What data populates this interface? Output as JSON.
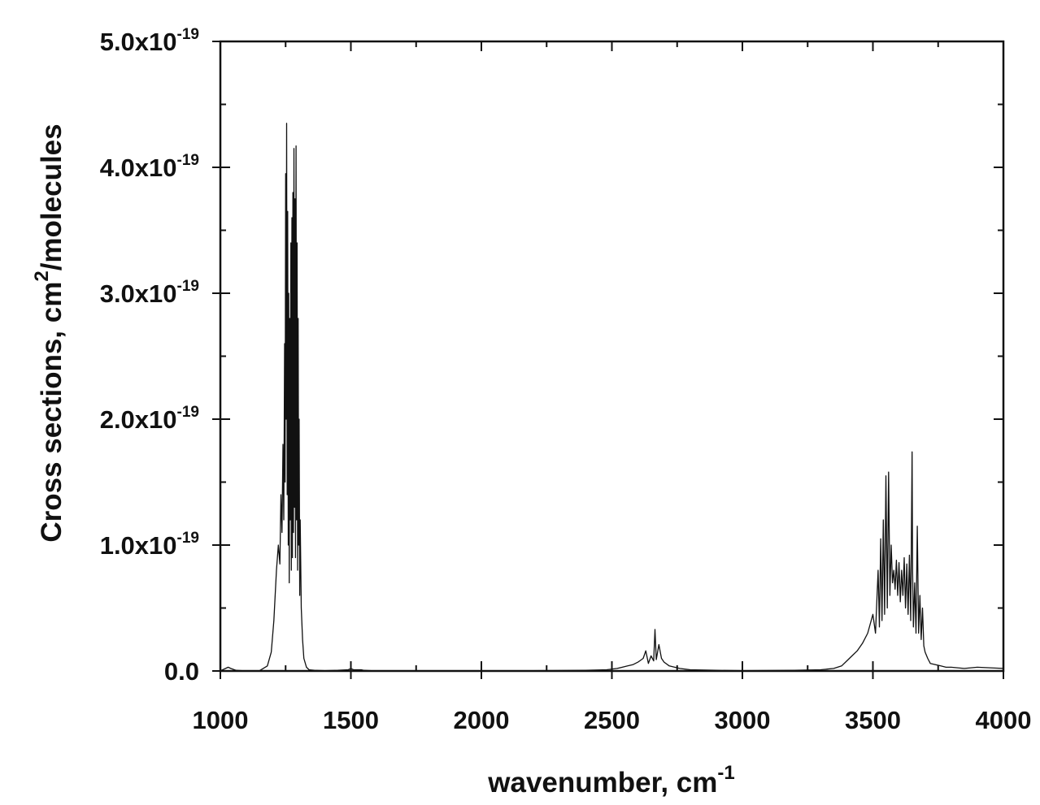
{
  "chart_data": {
    "type": "line",
    "title": "",
    "xlabel": {
      "text": "wavenumber, cm",
      "sup": "-1"
    },
    "ylabel": {
      "pre": "Cross sections, cm",
      "sup": "2",
      "post": "/molecules"
    },
    "xlim": [
      1000,
      4000
    ],
    "ylim": [
      0,
      5e-19
    ],
    "grid": false,
    "legend": "none",
    "line_color": "#111111",
    "x_ticks": [
      {
        "value": 1000,
        "label": "1000"
      },
      {
        "value": 1500,
        "label": "1500"
      },
      {
        "value": 2000,
        "label": "2000"
      },
      {
        "value": 2500,
        "label": "2500"
      },
      {
        "value": 3000,
        "label": "3000"
      },
      {
        "value": 3500,
        "label": "3500"
      },
      {
        "value": 4000,
        "label": "4000"
      }
    ],
    "y_ticks": [
      {
        "value": 0,
        "mant": "0.0",
        "exp": ""
      },
      {
        "value": 1e-19,
        "mant": "1.0x10",
        "exp": "-19"
      },
      {
        "value": 2e-19,
        "mant": "2.0x10",
        "exp": "-19"
      },
      {
        "value": 3e-19,
        "mant": "3.0x10",
        "exp": "-19"
      },
      {
        "value": 4e-19,
        "mant": "4.0x10",
        "exp": "-19"
      },
      {
        "value": 5e-19,
        "mant": "5.0x10",
        "exp": "-19"
      }
    ],
    "series": [
      {
        "x": [
          1000,
          1020,
          1030,
          1040,
          1060,
          1100,
          1150,
          1180,
          1195,
          1205,
          1215,
          1222,
          1228,
          1232,
          1236,
          1240,
          1243,
          1246,
          1248,
          1250,
          1252,
          1254,
          1256,
          1258,
          1260,
          1262,
          1264,
          1266,
          1268,
          1270,
          1272,
          1274,
          1276,
          1278,
          1280,
          1282,
          1284,
          1286,
          1288,
          1290,
          1292,
          1294,
          1296,
          1298,
          1300,
          1302,
          1304,
          1306,
          1310,
          1315,
          1320,
          1330,
          1340,
          1360,
          1400,
          1450,
          1490,
          1500,
          1510,
          1540,
          1550,
          1600,
          1800,
          2000,
          2200,
          2400,
          2480,
          2520,
          2560,
          2580,
          2600,
          2620,
          2630,
          2640,
          2650,
          2660,
          2665,
          2670,
          2675,
          2680,
          2690,
          2700,
          2720,
          2760,
          2800,
          2900,
          3000,
          3200,
          3300,
          3350,
          3380,
          3400,
          3420,
          3440,
          3460,
          3480,
          3500,
          3510,
          3520,
          3525,
          3530,
          3535,
          3540,
          3545,
          3550,
          3555,
          3560,
          3565,
          3570,
          3575,
          3580,
          3585,
          3590,
          3595,
          3600,
          3605,
          3610,
          3615,
          3620,
          3625,
          3630,
          3635,
          3640,
          3645,
          3650,
          3652,
          3655,
          3660,
          3665,
          3670,
          3675,
          3680,
          3685,
          3690,
          3695,
          3700,
          3710,
          3720,
          3740,
          3760,
          3780,
          3800,
          3850,
          3900,
          4000
        ],
        "y": [
          1e-22,
          2e-21,
          3e-21,
          2e-21,
          5e-22,
          0,
          2e-22,
          4e-21,
          1.5e-20,
          4e-20,
          8e-20,
          1e-19,
          8.5e-20,
          1.4e-19,
          1.1e-19,
          1.8e-19,
          1.2e-19,
          2.6e-19,
          1.5e-19,
          3.95e-19,
          2e-19,
          4.35e-19,
          1.4e-19,
          3.65e-19,
          1e-19,
          3e-19,
          7e-20,
          2.8e-19,
          1.2e-19,
          3.4e-19,
          8e-20,
          3.6e-19,
          9e-20,
          3.8e-19,
          1.1e-19,
          4.15e-19,
          1.3e-19,
          3.75e-19,
          9e-20,
          4.17e-19,
          1.2e-19,
          3.4e-19,
          8e-20,
          2.8e-19,
          1e-19,
          2e-19,
          6e-20,
          1.2e-19,
          5e-20,
          2.5e-20,
          1e-20,
          3e-21,
          1e-21,
          5e-22,
          2e-22,
          5e-22,
          1e-21,
          2e-21,
          1e-21,
          1e-21,
          5e-22,
          0,
          0,
          0,
          2e-22,
          5e-22,
          1e-21,
          2e-21,
          4e-21,
          5e-21,
          7e-21,
          1e-20,
          1.6e-20,
          6e-21,
          1.2e-20,
          8e-21,
          3.3e-20,
          9e-21,
          1.5e-20,
          2.1e-20,
          1e-20,
          7e-21,
          4e-21,
          2e-21,
          1e-21,
          5e-22,
          2e-22,
          5e-22,
          1e-21,
          2e-21,
          4e-21,
          8e-21,
          1.2e-20,
          1.6e-20,
          2.2e-20,
          3e-20,
          4.5e-20,
          3e-20,
          8e-20,
          3.5e-20,
          1.05e-19,
          4e-20,
          1.2e-19,
          4.5e-20,
          1.55e-19,
          5e-20,
          1.58e-19,
          6e-20,
          1e-19,
          7e-20,
          8e-20,
          6.5e-20,
          8.8e-20,
          6e-20,
          8.6e-20,
          5.5e-20,
          8e-20,
          6e-20,
          9e-20,
          5e-20,
          8.5e-20,
          4.5e-20,
          9.2e-20,
          4e-20,
          1.74e-19,
          8e-20,
          3.5e-20,
          7e-20,
          3e-20,
          1.15e-19,
          3e-20,
          6e-20,
          2.5e-20,
          5e-20,
          2e-20,
          1.5e-20,
          1e-20,
          6e-21,
          5e-21,
          4e-21,
          3e-21,
          3e-21,
          2e-21,
          3e-21,
          2e-21
        ]
      }
    ]
  }
}
